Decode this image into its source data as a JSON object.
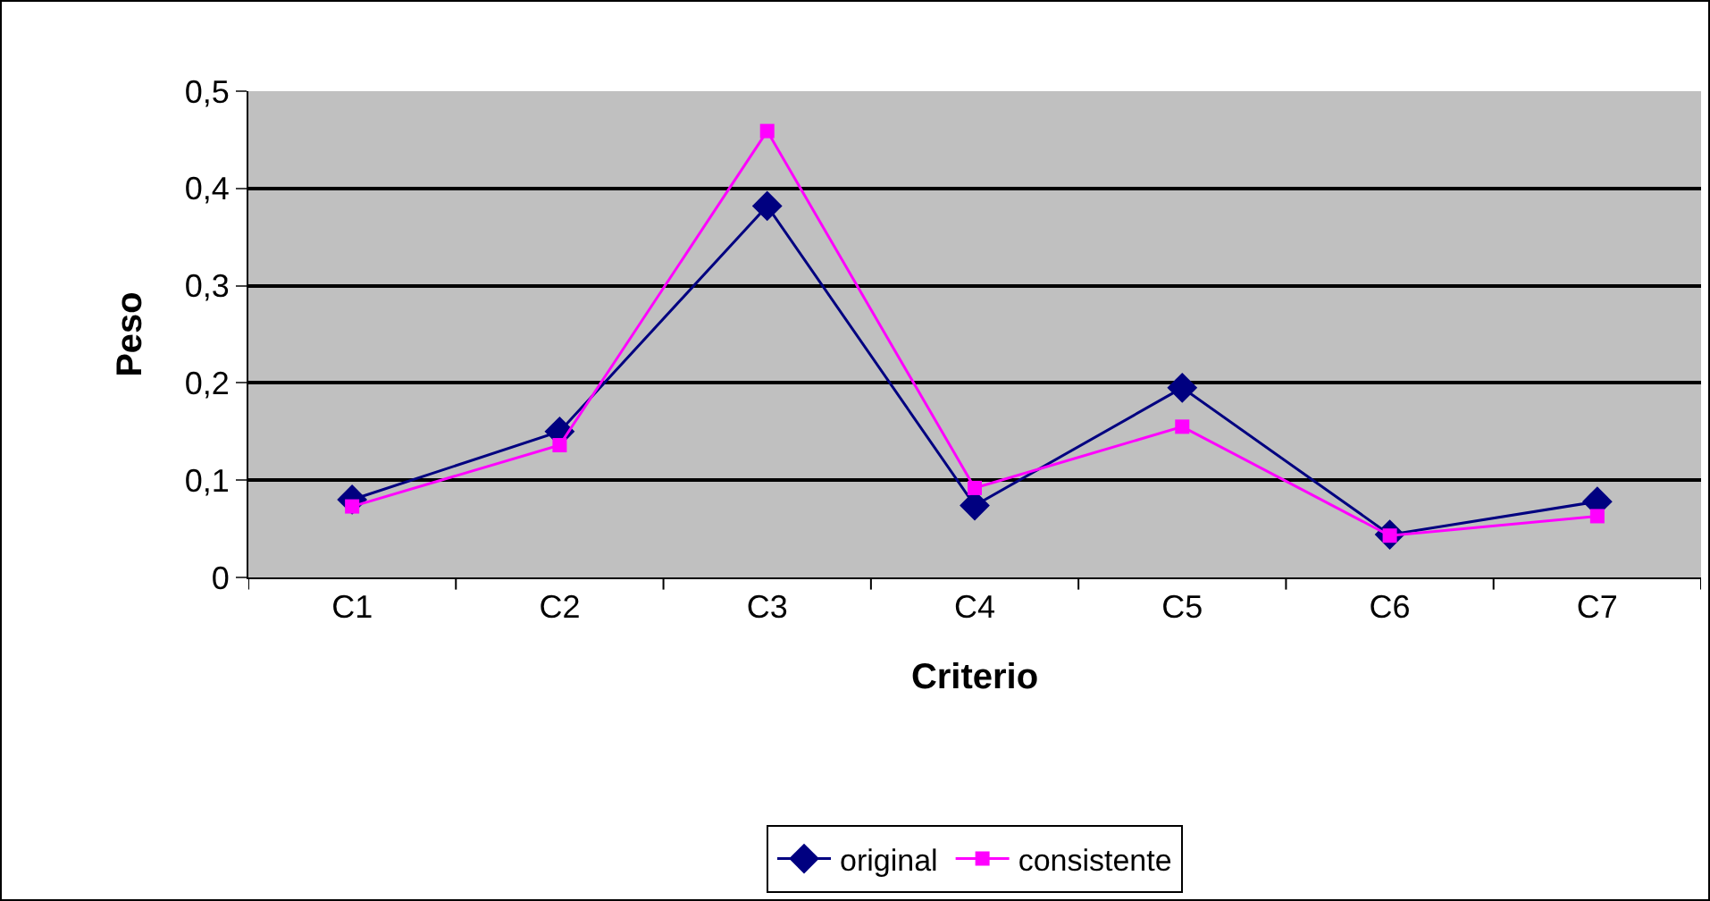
{
  "chart_data": {
    "type": "line",
    "xlabel": "Criterio",
    "ylabel": "Peso",
    "categories": [
      "C1",
      "C2",
      "C3",
      "C4",
      "C5",
      "C6",
      "C7"
    ],
    "series": [
      {
        "name": "original",
        "color": "#000080",
        "marker": "diamond",
        "values": [
          0.08,
          0.15,
          0.382,
          0.074,
          0.195,
          0.044,
          0.078
        ]
      },
      {
        "name": "consistente",
        "color": "#ff00ff",
        "marker": "square",
        "values": [
          0.073,
          0.136,
          0.459,
          0.092,
          0.155,
          0.043,
          0.063
        ]
      }
    ],
    "ylim": [
      0,
      0.5
    ],
    "yticks": [
      {
        "value": 0,
        "label": "0"
      },
      {
        "value": 0.1,
        "label": "0,1"
      },
      {
        "value": 0.2,
        "label": "0,2"
      },
      {
        "value": 0.3,
        "label": "0,3"
      },
      {
        "value": 0.4,
        "label": "0,4"
      },
      {
        "value": 0.5,
        "label": "0,5"
      }
    ],
    "grid": "y",
    "legend": "bottom",
    "line_style": "solid"
  }
}
